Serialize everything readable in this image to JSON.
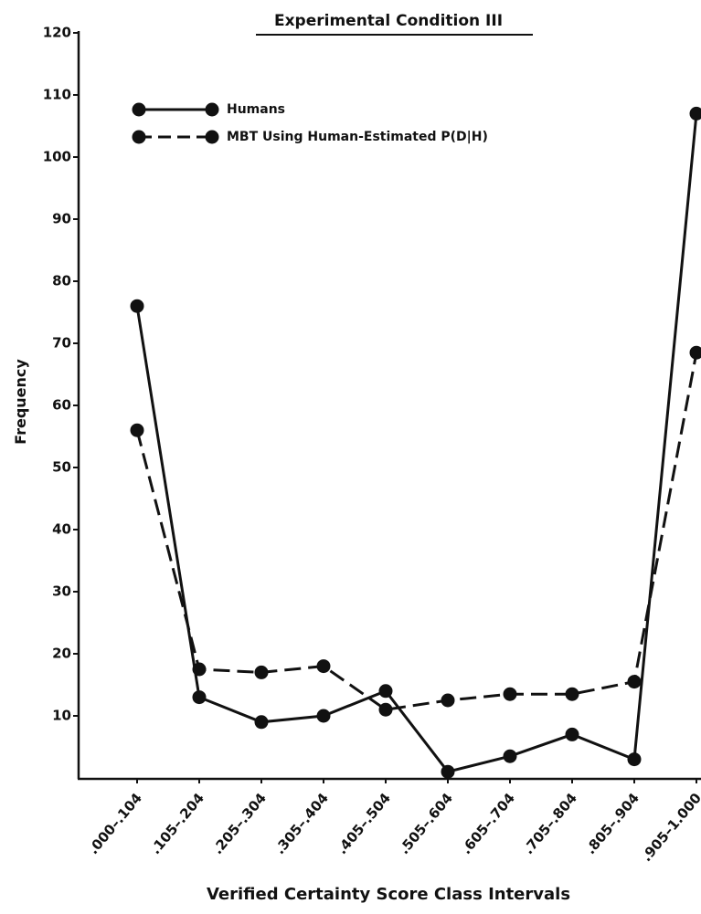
{
  "chart_data": {
    "type": "line",
    "title": "Experimental Condition III",
    "x_label": "Verified Certainty Score Class Intervals",
    "y_label": "Frequency",
    "categories": [
      ".000–.104",
      ".105–.204",
      ".205–.304",
      ".305–.404",
      ".405–.504",
      ".505–.604",
      ".605–.704",
      ".705–.804",
      ".805–.904",
      ".905–1.000"
    ],
    "series": [
      {
        "name": "Humans",
        "color": "#111111",
        "dash": false,
        "values": [
          76,
          13,
          9,
          10,
          14,
          1,
          3.5,
          7,
          3,
          107
        ]
      },
      {
        "name": "MBT Using Human-Estimated P(D|H)",
        "color": "#111111",
        "dash": true,
        "values": [
          56,
          17.5,
          17,
          18,
          11,
          12.5,
          13.5,
          13.5,
          15.5,
          68.5
        ]
      }
    ],
    "ylim": [
      0,
      120
    ],
    "yticks": [
      10,
      20,
      30,
      40,
      50,
      60,
      70,
      80,
      90,
      100,
      110,
      120
    ],
    "legend": "upper left"
  }
}
